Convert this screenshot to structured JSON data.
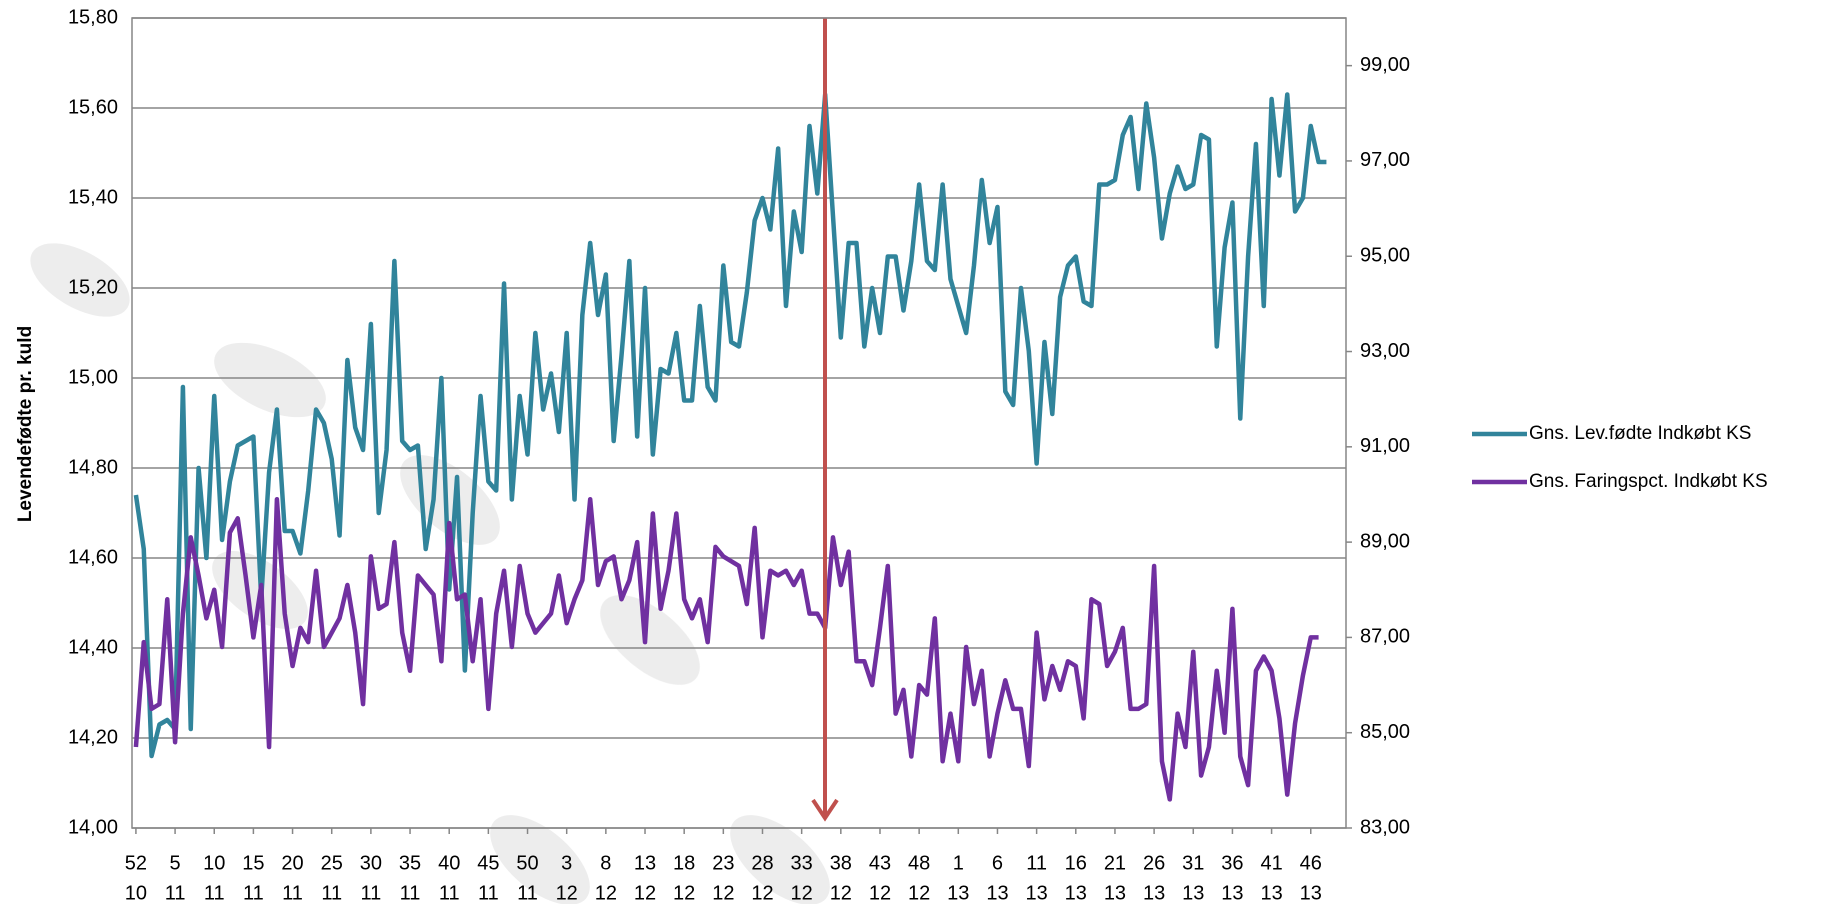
{
  "chart_data": {
    "type": "line",
    "y_label": "Levendefødte pr. kuld",
    "categories": [
      [
        "52",
        "10"
      ],
      null,
      null,
      null,
      null,
      [
        "5",
        "11"
      ],
      null,
      null,
      null,
      null,
      [
        "10",
        "11"
      ],
      null,
      null,
      null,
      null,
      [
        "15",
        "11"
      ],
      null,
      null,
      null,
      null,
      [
        "20",
        "11"
      ],
      null,
      null,
      null,
      null,
      [
        "25",
        "11"
      ],
      null,
      null,
      null,
      null,
      [
        "30",
        "11"
      ],
      null,
      null,
      null,
      null,
      [
        "35",
        "11"
      ],
      null,
      null,
      null,
      null,
      [
        "40",
        "11"
      ],
      null,
      null,
      null,
      null,
      [
        "45",
        "11"
      ],
      null,
      null,
      null,
      null,
      [
        "50",
        "11"
      ],
      null,
      null,
      null,
      null,
      [
        "3",
        "12"
      ],
      null,
      null,
      null,
      null,
      [
        "8",
        "12"
      ],
      null,
      null,
      null,
      null,
      [
        "13",
        "12"
      ],
      null,
      null,
      null,
      null,
      [
        "18",
        "12"
      ],
      null,
      null,
      null,
      null,
      [
        "23",
        "12"
      ],
      null,
      null,
      null,
      null,
      [
        "28",
        "12"
      ],
      null,
      null,
      null,
      null,
      [
        "33",
        "12"
      ],
      null,
      null,
      null,
      null,
      [
        "38",
        "12"
      ],
      null,
      null,
      null,
      null,
      [
        "43",
        "12"
      ],
      null,
      null,
      null,
      null,
      [
        "48",
        "12"
      ],
      null,
      null,
      null,
      null,
      [
        "1",
        "13"
      ],
      null,
      null,
      null,
      null,
      [
        "6",
        "13"
      ],
      null,
      null,
      null,
      null,
      [
        "11",
        "13"
      ],
      null,
      null,
      null,
      null,
      [
        "16",
        "13"
      ],
      null,
      null,
      null,
      null,
      [
        "21",
        "13"
      ],
      null,
      null,
      null,
      null,
      [
        "26",
        "13"
      ],
      null,
      null,
      null,
      null,
      [
        "31",
        "13"
      ],
      null,
      null,
      null,
      null,
      [
        "36",
        "13"
      ],
      null,
      null,
      null,
      null,
      [
        "41",
        "13"
      ],
      null,
      null,
      null,
      null,
      [
        "46",
        "13"
      ],
      null,
      null
    ],
    "series": [
      {
        "name": "Gns. Lev.fødte Indkøbt KS",
        "color": "#31849b",
        "values": [
          14.74,
          14.62,
          14.16,
          14.23,
          14.24,
          14.22,
          14.98,
          14.22,
          14.8,
          14.6,
          14.96,
          14.64,
          14.77,
          14.85,
          14.86,
          14.87,
          14.51,
          14.79,
          14.93,
          14.66,
          14.66,
          14.61,
          14.75,
          14.93,
          14.9,
          14.82,
          14.65,
          15.04,
          14.89,
          14.84,
          15.12,
          14.7,
          14.84,
          15.26,
          14.86,
          14.84,
          14.85,
          14.62,
          14.73,
          15.0,
          14.53,
          14.78,
          14.35,
          14.7,
          14.96,
          14.77,
          14.75,
          15.21,
          14.73,
          14.96,
          14.83,
          15.1,
          14.93,
          15.01,
          14.88,
          15.1,
          14.73,
          15.14,
          15.3,
          15.14,
          15.23,
          14.86,
          15.05,
          15.26,
          14.87,
          15.2,
          14.83,
          15.02,
          15.01,
          15.1,
          14.95,
          14.95,
          15.16,
          14.98,
          14.95,
          15.25,
          15.08,
          15.07,
          15.19,
          15.35,
          15.4,
          15.33,
          15.51,
          15.16,
          15.37,
          15.28,
          15.56,
          15.41,
          15.63,
          15.36,
          15.09,
          15.3,
          15.3,
          15.07,
          15.2,
          15.1,
          15.27,
          15.27,
          15.15,
          15.26,
          15.43,
          15.26,
          15.24,
          15.43,
          15.22,
          15.16,
          15.1,
          15.25,
          15.44,
          15.3,
          15.38,
          14.97,
          14.94,
          15.2,
          15.06,
          14.81,
          15.08,
          14.92,
          15.18,
          15.25,
          15.27,
          15.17,
          15.16,
          15.43,
          15.43,
          15.44,
          15.54,
          15.58,
          15.42,
          15.61,
          15.49,
          15.31,
          15.41,
          15.47,
          15.42,
          15.43,
          15.54,
          15.53,
          15.07,
          15.29,
          15.39,
          14.91,
          15.27,
          15.52,
          15.16,
          15.62,
          15.45,
          15.63,
          15.37,
          15.4,
          15.56,
          15.48,
          15.48
        ]
      },
      {
        "name": "Gns. Faringspct. Indkøbt KS",
        "color": "#7030a0",
        "axis": "y2",
        "values": [
          84.7,
          86.9,
          85.5,
          85.6,
          87.8,
          84.8,
          87.5,
          89.1,
          88.3,
          87.4,
          88.0,
          86.8,
          89.2,
          89.5,
          88.3,
          87.0,
          88.1,
          84.7,
          89.9,
          87.5,
          86.4,
          87.2,
          86.9,
          88.4,
          86.8,
          87.1,
          87.4,
          88.1,
          87.1,
          85.6,
          88.7,
          87.6,
          87.7,
          89.0,
          87.1,
          86.3,
          88.3,
          88.1,
          87.9,
          86.5,
          89.4,
          87.8,
          87.9,
          86.5,
          87.8,
          85.5,
          87.5,
          88.4,
          86.8,
          88.5,
          87.5,
          87.1,
          87.3,
          87.5,
          88.3,
          87.3,
          87.8,
          88.2,
          89.9,
          88.1,
          88.6,
          88.7,
          87.8,
          88.2,
          89.0,
          86.9,
          89.6,
          87.6,
          88.4,
          89.6,
          87.8,
          87.4,
          87.8,
          86.9,
          88.9,
          88.7,
          88.6,
          88.5,
          87.7,
          89.3,
          87.0,
          88.4,
          88.3,
          88.4,
          88.1,
          88.4,
          87.5,
          87.5,
          87.2,
          89.1,
          88.1,
          88.8,
          86.5,
          86.5,
          86.0,
          87.2,
          88.5,
          85.4,
          85.9,
          84.5,
          86.0,
          85.8,
          87.4,
          84.4,
          85.4,
          84.4,
          86.8,
          85.6,
          86.3,
          84.5,
          85.4,
          86.1,
          85.5,
          85.5,
          84.3,
          87.1,
          85.7,
          86.4,
          85.9,
          86.5,
          86.4,
          85.3,
          87.8,
          87.7,
          86.4,
          86.7,
          87.2,
          85.5,
          85.5,
          85.6,
          88.5,
          84.4,
          83.6,
          85.4,
          84.7,
          86.7,
          84.1,
          84.7,
          86.3,
          85.0,
          87.6,
          84.5,
          83.9,
          86.3,
          86.6,
          86.3,
          85.3,
          83.7,
          85.2,
          86.2,
          87.0,
          87.0,
          null
        ]
      }
    ],
    "ylim": [
      14.0,
      15.8
    ],
    "yticks": [
      {
        "value": 14.0,
        "label": "14,00"
      },
      {
        "value": 14.2,
        "label": "14,20"
      },
      {
        "value": 14.4,
        "label": "14,40"
      },
      {
        "value": 14.6,
        "label": "14,60"
      },
      {
        "value": 14.8,
        "label": "14,80"
      },
      {
        "value": 15.0,
        "label": "15,00"
      },
      {
        "value": 15.2,
        "label": "15,20"
      },
      {
        "value": 15.4,
        "label": "15,40"
      },
      {
        "value": 15.6,
        "label": "15,60"
      },
      {
        "value": 15.8,
        "label": "15,80"
      }
    ],
    "y2lim": [
      83,
      100
    ],
    "y2ticks": [
      {
        "value": 83,
        "label": "83,00"
      },
      {
        "value": 85,
        "label": "85,00"
      },
      {
        "value": 87,
        "label": "87,00"
      },
      {
        "value": 89,
        "label": "89,00"
      },
      {
        "value": 91,
        "label": "91,00"
      },
      {
        "value": 93,
        "label": "93,00"
      },
      {
        "value": 95,
        "label": "95,00"
      },
      {
        "value": 97,
        "label": "97,00"
      },
      {
        "value": 99,
        "label": "99,00"
      }
    ],
    "grid": true,
    "legend": "right"
  }
}
